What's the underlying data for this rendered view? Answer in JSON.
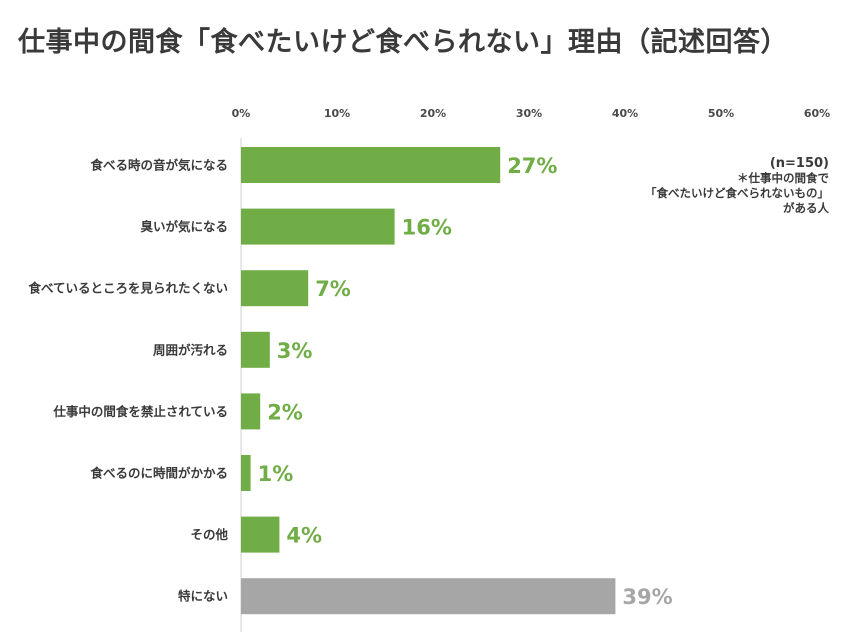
{
  "chart_data": {
    "type": "bar",
    "orientation": "horizontal",
    "title": "仕事中の間食「食べたいけど食べられない」理由（記述回答）",
    "categories": [
      "食べる時の音が気になる",
      "臭いが気になる",
      "食べているところを見られたくない",
      "周囲が汚れる",
      "仕事中の間食を禁止されている",
      "食べるのに時間がかかる",
      "その他",
      "特にない"
    ],
    "values": [
      27,
      16,
      7,
      3,
      2,
      1,
      4,
      39
    ],
    "value_labels": [
      "27%",
      "16%",
      "7%",
      "3%",
      "2%",
      "1%",
      "4%",
      "39%"
    ],
    "x_ticks": [
      "0%",
      "10%",
      "20%",
      "30%",
      "40%",
      "50%",
      "60%"
    ],
    "xlim": [
      0,
      60
    ],
    "xlabel": "",
    "ylabel": "",
    "legend": "none",
    "grid": false,
    "highlight_category": "特にない",
    "annotation": {
      "n": "(n=150)",
      "line1": "＊仕事中の間食で",
      "line2": "「食べたいけど食べられないもの」",
      "line3": "がある人"
    }
  },
  "colors": {
    "bar": "#70ad47",
    "bar_highlight": "#a6a6a6",
    "axis": "#d0d0d0",
    "label_green": "#70ad47",
    "label_gray": "#a6a6a6"
  }
}
